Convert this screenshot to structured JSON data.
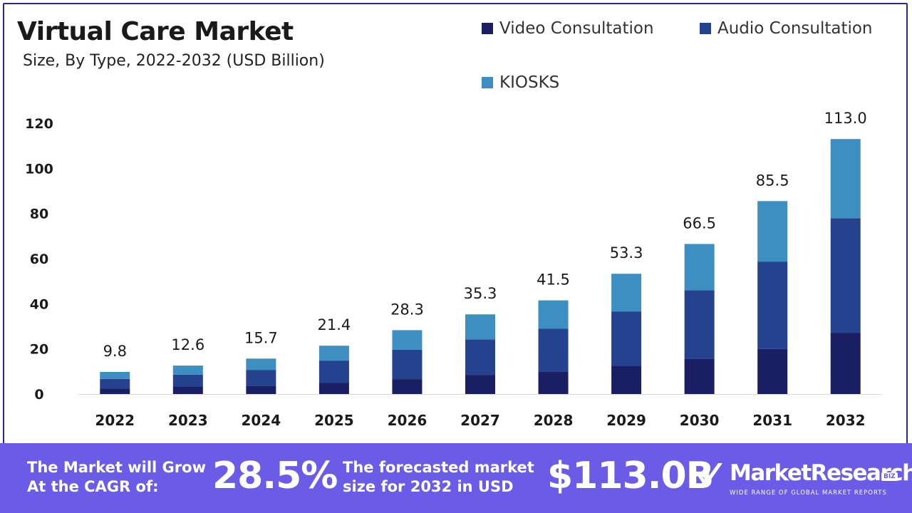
{
  "title": "Virtual Care Market",
  "subtitle": "Size, By Type, 2022-2032 (USD Billion)",
  "colors": {
    "video": "#1a1f63",
    "audio": "#24428e",
    "kiosks": "#3d8fc1",
    "footer": "#6b5ce7",
    "frame": "#2b2a8a"
  },
  "chart_data": {
    "type": "bar",
    "stacked": true,
    "categories": [
      "2022",
      "2023",
      "2024",
      "2025",
      "2026",
      "2027",
      "2028",
      "2029",
      "2030",
      "2031",
      "2032"
    ],
    "series": [
      {
        "name": "Video Consultation",
        "values": [
          2.4,
          3.3,
          3.7,
          4.9,
          6.6,
          8.5,
          9.8,
          12.5,
          15.7,
          20.0,
          27.0
        ]
      },
      {
        "name": "Audio Consultation",
        "values": [
          4.3,
          5.3,
          7.0,
          9.9,
          13.0,
          15.7,
          19.2,
          24.1,
          30.3,
          38.7,
          50.9
        ]
      },
      {
        "name": "KIOSKS",
        "values": [
          3.1,
          4.0,
          5.0,
          6.6,
          8.7,
          11.1,
          12.5,
          16.7,
          20.5,
          26.8,
          35.1
        ]
      }
    ],
    "totals": [
      "9.8",
      "12.6",
      "15.7",
      "21.4",
      "28.3",
      "35.3",
      "41.5",
      "53.3",
      "66.5",
      "85.5",
      "113.0"
    ],
    "yticks": [
      0,
      20,
      40,
      60,
      80,
      100,
      120
    ],
    "ylim": [
      0,
      120
    ],
    "grid": false,
    "legend_position": "top-right"
  },
  "footer": {
    "cagr_line1": "The Market will Grow",
    "cagr_line2": "At the CAGR of:",
    "cagr_value": "28.5%",
    "forecast_line1": "The forecasted market",
    "forecast_line2": "size for 2032 in USD",
    "forecast_value": "$113.0B",
    "brand": "MarketResearch",
    "brand_badge": "BIZ",
    "brand_tagline": "WIDE RANGE OF GLOBAL MARKET REPORTS"
  }
}
